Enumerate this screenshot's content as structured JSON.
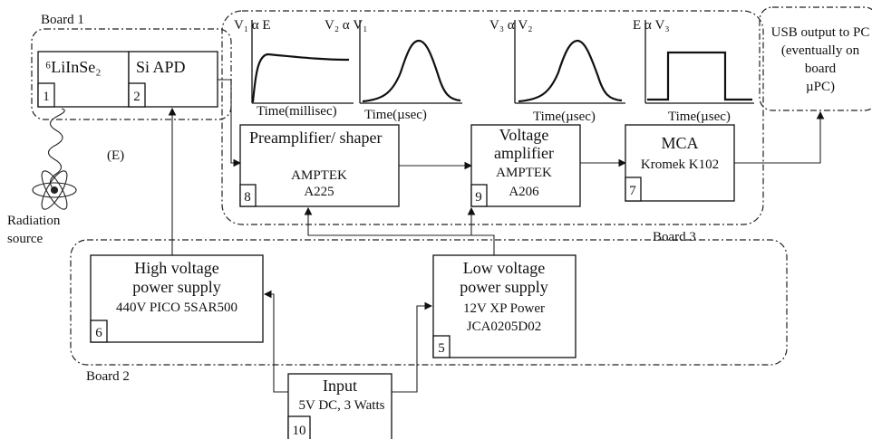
{
  "boards": [
    {
      "label": "Board 1"
    },
    {
      "label": "Board 2"
    },
    {
      "label": "Board 3"
    }
  ],
  "blocks": {
    "detector": {
      "lines": [
        "⁶LiInSe₂"
      ],
      "number": "1"
    },
    "apd": {
      "lines": [
        "Si APD"
      ],
      "number": "2"
    },
    "preamp": {
      "lines": [
        "Preamplifier/ shaper",
        "AMPTEK",
        "A225"
      ],
      "number": "8"
    },
    "voltage_amp": {
      "lines": [
        "Voltage",
        "amplifier",
        "AMPTEK",
        "A206"
      ],
      "number": "9"
    },
    "mca": {
      "lines": [
        "MCA",
        "Kromek K102"
      ],
      "number": "7"
    },
    "hv": {
      "lines": [
        "High voltage",
        "power supply",
        "440V PICO 5SAR500"
      ],
      "number": "6"
    },
    "lv": {
      "lines": [
        "Low voltage",
        "power supply",
        "12V XP Power",
        "JCA0205D02"
      ],
      "number": "5"
    },
    "input": {
      "lines": [
        "Input",
        "5V DC, 3 Watts"
      ],
      "number": "10"
    }
  },
  "usb": [
    "USB output to PC",
    "(eventually on",
    "board",
    "µPC)"
  ],
  "energy_label": "(E)",
  "source": [
    "Radiation",
    "source"
  ],
  "plots": [
    {
      "relation": "V₁ α E",
      "axis": "Time(millisec)"
    },
    {
      "relation": "V₂ α V₁",
      "axis": "Time(µsec)"
    },
    {
      "relation": "V₃ α V₂",
      "axis": "Time(µsec)"
    },
    {
      "relation": "E α V₃",
      "axis": "Time(µsec)"
    }
  ]
}
